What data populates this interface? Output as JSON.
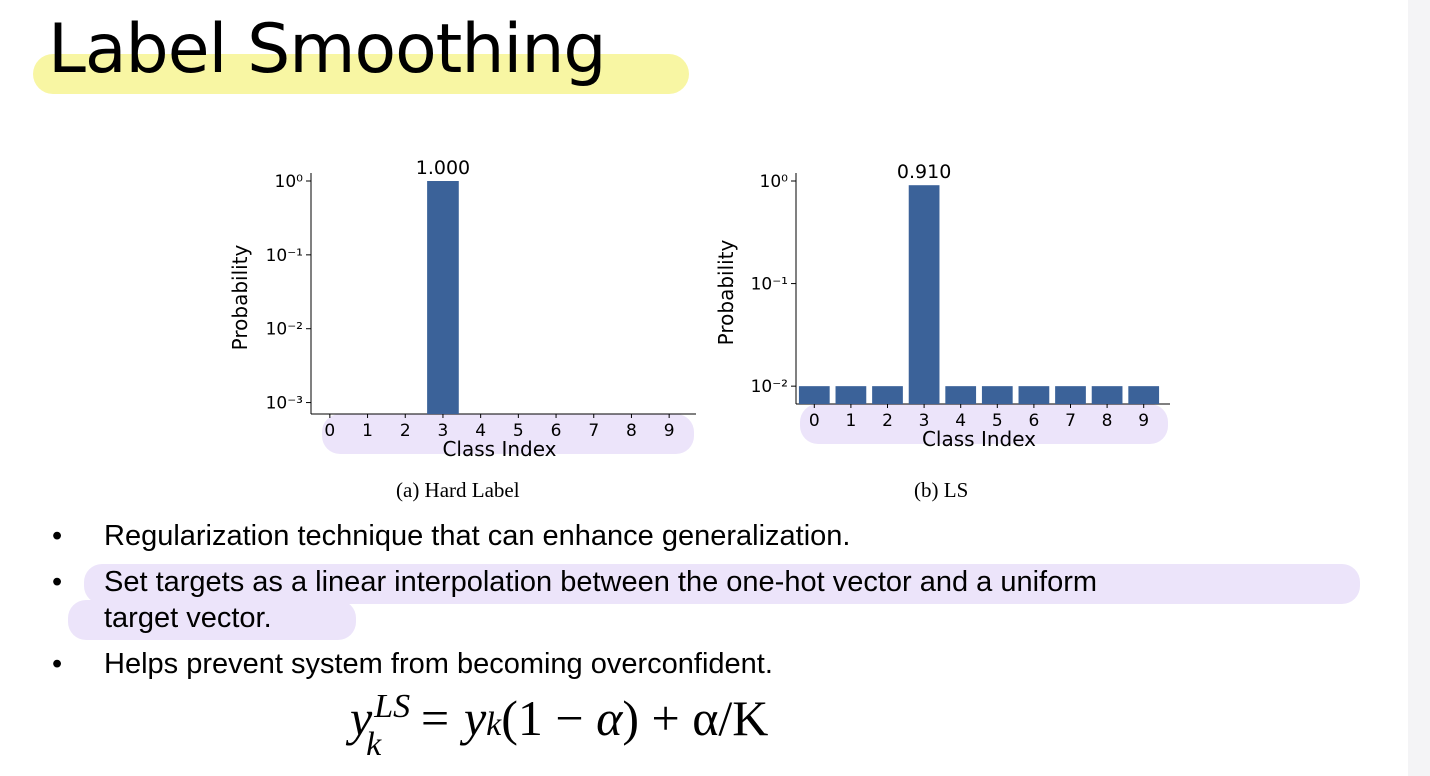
{
  "slide": {
    "title": "Label Smoothing",
    "figures": [
      {
        "caption": "(a) Hard Label",
        "chart_data": {
          "type": "bar",
          "y_scale": "log",
          "categories": [
            "0",
            "1",
            "2",
            "3",
            "4",
            "5",
            "6",
            "7",
            "8",
            "9"
          ],
          "values": [
            0,
            0,
            0,
            1.0,
            0,
            0,
            0,
            0,
            0,
            0
          ],
          "data_labels": [
            "",
            "",
            "",
            "1.000",
            "",
            "",
            "",
            "",
            "",
            ""
          ],
          "xlabel": "Class Index",
          "ylabel": "Probability",
          "yticks": [
            "10⁰",
            "10⁻¹",
            "10⁻²",
            "10⁻³"
          ],
          "ylim": [
            0.0007,
            1
          ],
          "color": "#3b6299"
        }
      },
      {
        "caption": "(b) LS",
        "chart_data": {
          "type": "bar",
          "y_scale": "log",
          "categories": [
            "0",
            "1",
            "2",
            "3",
            "4",
            "5",
            "6",
            "7",
            "8",
            "9"
          ],
          "values": [
            0.01,
            0.01,
            0.01,
            0.91,
            0.01,
            0.01,
            0.01,
            0.01,
            0.01,
            0.01
          ],
          "data_labels": [
            "",
            "",
            "",
            "0.910",
            "",
            "",
            "",
            "",
            "",
            ""
          ],
          "xlabel": "Class Index",
          "ylabel": "Probability",
          "yticks": [
            "10⁰",
            "10⁻¹",
            "10⁻²"
          ],
          "ylim": [
            0.0067,
            1
          ],
          "color": "#3b6299"
        }
      }
    ],
    "bullets": [
      {
        "line1": "Regularization technique that can enhance generalization.",
        "line2": ""
      },
      {
        "line1": "Set targets as a linear interpolation between the one-hot vector and a uniform",
        "line2": "target vector."
      },
      {
        "line1": "Helps prevent system from becoming overconfident.",
        "line2": ""
      }
    ],
    "bullet_symbol": "•",
    "formula": {
      "lhs_var": "y",
      "lhs_sup": "LS",
      "lhs_sub": "k",
      "rhs": "= y",
      "rhs_sub": "k",
      "rhs_rest_open": "(1 − ",
      "alpha": "α",
      "rhs_rest_close": ") + α/K"
    },
    "highlight_colors": {
      "title": "#f8f6a3",
      "marker": "#ece4fa"
    }
  }
}
